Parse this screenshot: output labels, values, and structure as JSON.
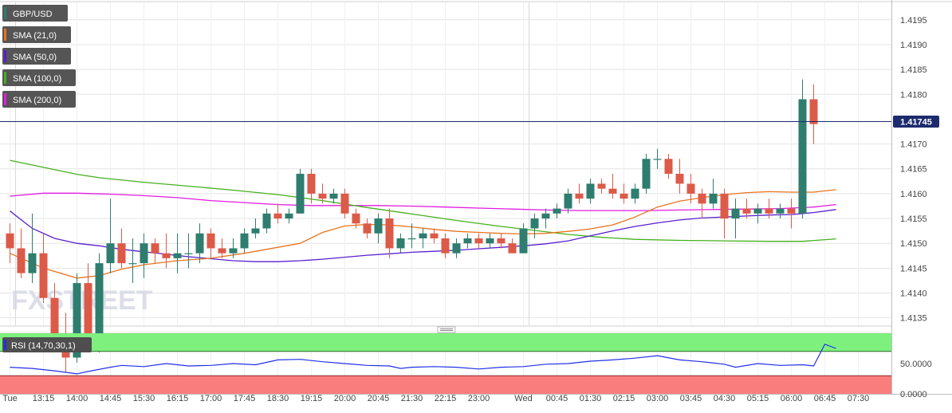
{
  "chart_data": {
    "type": "candlestick",
    "symbol": "GBP/USD",
    "legend": [
      {
        "label": "GBP/USD",
        "color": "#2e7d6e"
      },
      {
        "label": "SMA (21,0)",
        "color": "#e8741e"
      },
      {
        "label": "SMA (50,0)",
        "color": "#5a1fd0"
      },
      {
        "label": "SMA (100,0)",
        "color": "#46b01e"
      },
      {
        "label": "SMA (200,0)",
        "color": "#e21ce2"
      }
    ],
    "last_price": "1.41745",
    "last_price_value": 1.41745,
    "ylim": [
      1.41335,
      1.41985
    ],
    "y_ticks": [
      {
        "label": "1.4195",
        "value": 1.4195
      },
      {
        "label": "1.4190",
        "value": 1.419
      },
      {
        "label": "1.4185",
        "value": 1.4185
      },
      {
        "label": "1.4180",
        "value": 1.418
      },
      {
        "label": "1.4170",
        "value": 1.417
      },
      {
        "label": "1.4165",
        "value": 1.4165
      },
      {
        "label": "1.4160",
        "value": 1.416
      },
      {
        "label": "1.4155",
        "value": 1.4155
      },
      {
        "label": "1.4150",
        "value": 1.415
      },
      {
        "label": "1.4145",
        "value": 1.4145
      },
      {
        "label": "1.4140",
        "value": 1.414
      },
      {
        "label": "1.4135",
        "value": 1.4135
      }
    ],
    "x_ticks": [
      {
        "label": "Tue",
        "index": 0
      },
      {
        "label": "13:15",
        "index": 3
      },
      {
        "label": "14:00",
        "index": 6
      },
      {
        "label": "14:45",
        "index": 9
      },
      {
        "label": "15:30",
        "index": 12
      },
      {
        "label": "16:15",
        "index": 15
      },
      {
        "label": "17:00",
        "index": 18
      },
      {
        "label": "17:45",
        "index": 21
      },
      {
        "label": "18:30",
        "index": 24
      },
      {
        "label": "19:15",
        "index": 27
      },
      {
        "label": "20:00",
        "index": 30
      },
      {
        "label": "20:45",
        "index": 33
      },
      {
        "label": "21:30",
        "index": 36
      },
      {
        "label": "22:15",
        "index": 39
      },
      {
        "label": "23:00",
        "index": 42
      },
      {
        "label": "Wed",
        "index": 46
      },
      {
        "label": "00:45",
        "index": 49
      },
      {
        "label": "01:30",
        "index": 52
      },
      {
        "label": "02:15",
        "index": 55
      },
      {
        "label": "03:00",
        "index": 58
      },
      {
        "label": "03:45",
        "index": 61
      },
      {
        "label": "04:30",
        "index": 64
      },
      {
        "label": "05:15",
        "index": 67
      },
      {
        "label": "06:00",
        "index": 70
      },
      {
        "label": "06:45",
        "index": 73
      },
      {
        "label": "07:30",
        "index": 76
      }
    ],
    "x_separators": [
      {
        "label": "Tue",
        "index": 0
      },
      {
        "label": "Wed",
        "index": 46
      }
    ],
    "candles": [
      [
        1.4152,
        1.4154,
        1.4146,
        1.4149
      ],
      [
        1.4149,
        1.4153,
        1.4143,
        1.4144
      ],
      [
        1.4144,
        1.4156,
        1.4142,
        1.4148
      ],
      [
        1.4148,
        1.4152,
        1.4138,
        1.4139
      ],
      [
        1.4139,
        1.4142,
        1.413,
        1.4131
      ],
      [
        1.4131,
        1.4136,
        1.4124,
        1.4127
      ],
      [
        1.4127,
        1.4144,
        1.4126,
        1.4142
      ],
      [
        1.4142,
        1.4146,
        1.413,
        1.4131
      ],
      [
        1.4131,
        1.4148,
        1.4128,
        1.4146
      ],
      [
        1.4146,
        1.4159,
        1.4144,
        1.415
      ],
      [
        1.415,
        1.4153,
        1.4145,
        1.4146
      ],
      [
        1.4146,
        1.4151,
        1.4142,
        1.4146
      ],
      [
        1.4146,
        1.4152,
        1.4143,
        1.415
      ],
      [
        1.415,
        1.4151,
        1.4146,
        1.4148
      ],
      [
        1.4148,
        1.4152,
        1.4145,
        1.4147
      ],
      [
        1.4147,
        1.4152,
        1.4144,
        1.4148
      ],
      [
        1.4148,
        1.4152,
        1.4145,
        1.4148
      ],
      [
        1.4148,
        1.4154,
        1.4146,
        1.4152
      ],
      [
        1.4152,
        1.4153,
        1.4147,
        1.4149
      ],
      [
        1.4149,
        1.4151,
        1.4147,
        1.4148
      ],
      [
        1.4148,
        1.4151,
        1.4147,
        1.4149
      ],
      [
        1.4149,
        1.4153,
        1.4148,
        1.4152
      ],
      [
        1.4152,
        1.4155,
        1.4151,
        1.4153
      ],
      [
        1.4153,
        1.4157,
        1.4152,
        1.4156
      ],
      [
        1.4156,
        1.4158,
        1.4154,
        1.4155
      ],
      [
        1.4155,
        1.4157,
        1.4154,
        1.4156
      ],
      [
        1.4156,
        1.4165,
        1.4156,
        1.4164
      ],
      [
        1.4164,
        1.4165,
        1.4158,
        1.416
      ],
      [
        1.416,
        1.4162,
        1.4158,
        1.4159
      ],
      [
        1.4159,
        1.4161,
        1.4158,
        1.416
      ],
      [
        1.416,
        1.4161,
        1.4155,
        1.4156
      ],
      [
        1.4156,
        1.4157,
        1.4153,
        1.4154
      ],
      [
        1.4154,
        1.4155,
        1.4151,
        1.4152
      ],
      [
        1.4152,
        1.4156,
        1.415,
        1.4155
      ],
      [
        1.4155,
        1.4157,
        1.4147,
        1.4149
      ],
      [
        1.4149,
        1.4152,
        1.4148,
        1.4151
      ],
      [
        1.4151,
        1.4154,
        1.4149,
        1.4151
      ],
      [
        1.4151,
        1.4153,
        1.4149,
        1.4152
      ],
      [
        1.4152,
        1.4153,
        1.415,
        1.4151
      ],
      [
        1.4151,
        1.4152,
        1.4147,
        1.4148
      ],
      [
        1.4148,
        1.4151,
        1.4147,
        1.415
      ],
      [
        1.415,
        1.4152,
        1.4149,
        1.4151
      ],
      [
        1.4151,
        1.4152,
        1.4149,
        1.415
      ],
      [
        1.415,
        1.4152,
        1.4149,
        1.4151
      ],
      [
        1.4151,
        1.4152,
        1.4149,
        1.415
      ],
      [
        1.415,
        1.4151,
        1.4148,
        1.4148
      ],
      [
        1.4148,
        1.4154,
        1.4148,
        1.4153
      ],
      [
        1.4153,
        1.4156,
        1.4151,
        1.4155
      ],
      [
        1.4155,
        1.4157,
        1.4153,
        1.4156
      ],
      [
        1.4156,
        1.4158,
        1.4155,
        1.4157
      ],
      [
        1.4157,
        1.4161,
        1.4156,
        1.416
      ],
      [
        1.416,
        1.4162,
        1.4158,
        1.4159
      ],
      [
        1.4159,
        1.4163,
        1.4158,
        1.4162
      ],
      [
        1.4162,
        1.4163,
        1.416,
        1.4161
      ],
      [
        1.4161,
        1.4164,
        1.4159,
        1.416
      ],
      [
        1.416,
        1.4162,
        1.4158,
        1.4159
      ],
      [
        1.4159,
        1.4162,
        1.4158,
        1.4161
      ],
      [
        1.4161,
        1.4168,
        1.416,
        1.4167
      ],
      [
        1.4167,
        1.4169,
        1.4165,
        1.4167
      ],
      [
        1.4167,
        1.4168,
        1.4163,
        1.4164
      ],
      [
        1.4164,
        1.4167,
        1.416,
        1.4162
      ],
      [
        1.4162,
        1.4164,
        1.4158,
        1.416
      ],
      [
        1.416,
        1.4161,
        1.4155,
        1.4158
      ],
      [
        1.4158,
        1.4163,
        1.4157,
        1.416
      ],
      [
        1.416,
        1.4161,
        1.4151,
        1.4155
      ],
      [
        1.4155,
        1.4159,
        1.4151,
        1.4157
      ],
      [
        1.4157,
        1.4159,
        1.4155,
        1.4156
      ],
      [
        1.4156,
        1.4158,
        1.4154,
        1.4157
      ],
      [
        1.4157,
        1.4159,
        1.4155,
        1.4156
      ],
      [
        1.4156,
        1.4158,
        1.4155,
        1.4157
      ],
      [
        1.4157,
        1.4159,
        1.4153,
        1.4156
      ],
      [
        1.4156,
        1.4183,
        1.4155,
        1.4179
      ],
      [
        1.4179,
        1.4182,
        1.417,
        1.4174
      ]
    ],
    "sma_21": [
      [
        0,
        1.4148
      ],
      [
        3,
        1.4145
      ],
      [
        6,
        1.4143
      ],
      [
        8,
        1.41435
      ],
      [
        10,
        1.41448
      ],
      [
        12,
        1.41457
      ],
      [
        15,
        1.41465
      ],
      [
        18,
        1.4147
      ],
      [
        21,
        1.4148
      ],
      [
        24,
        1.41492
      ],
      [
        26,
        1.415
      ],
      [
        28,
        1.41522
      ],
      [
        30,
        1.41535
      ],
      [
        32,
        1.41538
      ],
      [
        34,
        1.41537
      ],
      [
        36,
        1.41533
      ],
      [
        38,
        1.41528
      ],
      [
        40,
        1.41524
      ],
      [
        42,
        1.41522
      ],
      [
        44,
        1.4152
      ],
      [
        46,
        1.41519
      ],
      [
        48,
        1.4152
      ],
      [
        50,
        1.41524
      ],
      [
        52,
        1.41529
      ],
      [
        54,
        1.41537
      ],
      [
        56,
        1.41553
      ],
      [
        58,
        1.41573
      ],
      [
        60,
        1.41585
      ],
      [
        62,
        1.41592
      ],
      [
        64,
        1.41598
      ],
      [
        66,
        1.41602
      ],
      [
        68,
        1.41604
      ],
      [
        70,
        1.41603
      ],
      [
        72,
        1.41603
      ],
      [
        74,
        1.41608
      ]
    ],
    "sma_50": [
      [
        0,
        1.41565
      ],
      [
        2,
        1.4153
      ],
      [
        4,
        1.4151
      ],
      [
        6,
        1.415
      ],
      [
        8,
        1.41495
      ],
      [
        10,
        1.41488
      ],
      [
        12,
        1.41483
      ],
      [
        14,
        1.41478
      ],
      [
        16,
        1.41473
      ],
      [
        18,
        1.41469
      ],
      [
        20,
        1.41465
      ],
      [
        22,
        1.41463
      ],
      [
        24,
        1.41463
      ],
      [
        26,
        1.41465
      ],
      [
        28,
        1.41468
      ],
      [
        30,
        1.41472
      ],
      [
        32,
        1.41476
      ],
      [
        34,
        1.41479
      ],
      [
        36,
        1.41482
      ],
      [
        38,
        1.41484
      ],
      [
        40,
        1.41486
      ],
      [
        42,
        1.41489
      ],
      [
        44,
        1.41492
      ],
      [
        46,
        1.41495
      ],
      [
        48,
        1.41499
      ],
      [
        50,
        1.41505
      ],
      [
        52,
        1.41515
      ],
      [
        54,
        1.41525
      ],
      [
        56,
        1.41534
      ],
      [
        58,
        1.41541
      ],
      [
        60,
        1.41547
      ],
      [
        62,
        1.41551
      ],
      [
        64,
        1.41553
      ],
      [
        66,
        1.41555
      ],
      [
        68,
        1.41557
      ],
      [
        70,
        1.41558
      ],
      [
        72,
        1.41562
      ],
      [
        74,
        1.41568
      ]
    ],
    "sma_100": [
      [
        0,
        1.41667
      ],
      [
        3,
        1.41653
      ],
      [
        6,
        1.41639
      ],
      [
        8,
        1.41632
      ],
      [
        12,
        1.41623
      ],
      [
        16,
        1.41615
      ],
      [
        20,
        1.41607
      ],
      [
        24,
        1.41598
      ],
      [
        28,
        1.41586
      ],
      [
        32,
        1.41572
      ],
      [
        36,
        1.41559
      ],
      [
        40,
        1.41546
      ],
      [
        44,
        1.41534
      ],
      [
        47,
        1.41526
      ],
      [
        50,
        1.41518
      ],
      [
        53,
        1.41512
      ],
      [
        56,
        1.41508
      ],
      [
        60,
        1.41506
      ],
      [
        64,
        1.41505
      ],
      [
        68,
        1.41504
      ],
      [
        71,
        1.41504
      ],
      [
        74,
        1.41509
      ]
    ],
    "sma_200": [
      [
        0,
        1.41595
      ],
      [
        3,
        1.41601
      ],
      [
        6,
        1.41601
      ],
      [
        9,
        1.41599
      ],
      [
        12,
        1.41596
      ],
      [
        15,
        1.41592
      ],
      [
        18,
        1.41586
      ],
      [
        21,
        1.41582
      ],
      [
        24,
        1.41578
      ],
      [
        27,
        1.41576
      ],
      [
        30,
        1.41576
      ],
      [
        33,
        1.41576
      ],
      [
        36,
        1.41575
      ],
      [
        39,
        1.41573
      ],
      [
        42,
        1.41571
      ],
      [
        45,
        1.41569
      ],
      [
        48,
        1.41567
      ],
      [
        51,
        1.41566
      ],
      [
        54,
        1.41566
      ],
      [
        57,
        1.41566
      ],
      [
        60,
        1.41567
      ],
      [
        63,
        1.41568
      ],
      [
        66,
        1.41569
      ],
      [
        69,
        1.4157
      ],
      [
        72,
        1.41573
      ],
      [
        74,
        1.41578
      ]
    ],
    "rsi": {
      "label": "RSI (14,70,30,1)",
      "overbought": 70,
      "oversold": 30,
      "ylim": [
        0,
        100
      ],
      "y_ticks": [
        {
          "label": "50.0000",
          "value": 50
        },
        {
          "label": "0.0000",
          "value": 0
        }
      ],
      "values": [
        [
          0,
          44
        ],
        [
          2,
          42
        ],
        [
          4,
          38
        ],
        [
          6,
          33
        ],
        [
          7,
          37
        ],
        [
          9,
          44
        ],
        [
          10,
          47
        ],
        [
          12,
          45
        ],
        [
          14,
          50
        ],
        [
          16,
          46
        ],
        [
          18,
          47
        ],
        [
          20,
          50
        ],
        [
          22,
          48
        ],
        [
          24,
          56
        ],
        [
          26,
          57
        ],
        [
          28,
          53
        ],
        [
          30,
          50
        ],
        [
          32,
          47
        ],
        [
          34,
          46
        ],
        [
          35,
          42
        ],
        [
          36,
          44
        ],
        [
          38,
          45
        ],
        [
          40,
          44
        ],
        [
          42,
          41
        ],
        [
          44,
          44
        ],
        [
          46,
          45
        ],
        [
          48,
          49
        ],
        [
          50,
          50
        ],
        [
          52,
          54
        ],
        [
          54,
          56
        ],
        [
          56,
          59
        ],
        [
          58,
          63
        ],
        [
          60,
          56
        ],
        [
          62,
          53
        ],
        [
          64,
          49
        ],
        [
          65,
          44
        ],
        [
          67,
          50
        ],
        [
          69,
          47
        ],
        [
          71,
          48
        ],
        [
          72,
          46
        ],
        [
          73,
          82
        ],
        [
          74,
          75
        ]
      ]
    },
    "colors": {
      "bull": "#2e7d6e",
      "bear": "#dc5a48",
      "rsi_line": "#2130e8",
      "rsi_overbought_zone": "#7ef07e",
      "rsi_oversold_zone": "#fa7d7d",
      "last_price_line": "#1c2a6e",
      "grid": "#e4e4e4"
    },
    "watermark": "FXSTREET"
  }
}
